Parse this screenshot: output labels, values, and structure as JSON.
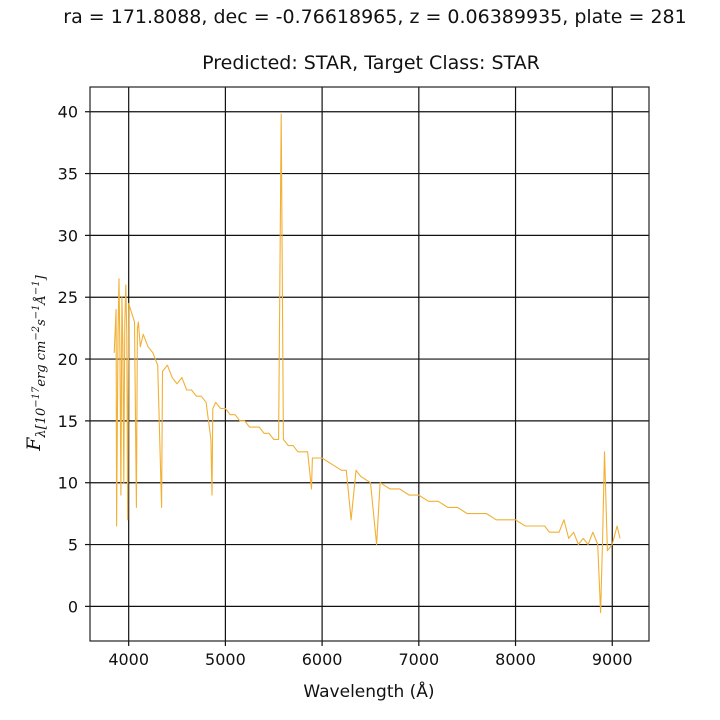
{
  "chart_data": {
    "type": "line",
    "title": "ra = 171.8088, dec = -0.76618965, z = 0.06389935, plate = 281",
    "subtitle": "Predicted: STAR, Target Class: STAR",
    "xlabel": "Wavelength (Å)",
    "ylabel": "F_λ[10^-17 erg cm^-2 s^-1 Å^-1]",
    "ylabel_main": "F",
    "ylabel_sub": "λ[10",
    "ylabel_exp1": "−17",
    "ylabel_mid": "erg cm",
    "ylabel_exp2": "−2",
    "ylabel_s": "s",
    "ylabel_exp3": "−1",
    "ylabel_ang": "Å",
    "ylabel_exp4": "−1",
    "ylabel_close": "]",
    "xlim": [
      3600,
      9380
    ],
    "ylim": [
      -2.8,
      42
    ],
    "xticks": [
      4000,
      5000,
      6000,
      7000,
      8000,
      9000
    ],
    "yticks": [
      0,
      5,
      10,
      15,
      20,
      25,
      30,
      35,
      40
    ],
    "grid": true,
    "line_color": "#f2b035",
    "series": [
      {
        "x": [
          3850,
          3870,
          3875,
          3890,
          3900,
          3910,
          3920,
          3930,
          3940,
          3950,
          3960,
          3970,
          3980,
          3990,
          4000,
          4020,
          4040,
          4060,
          4080,
          4090,
          4100,
          4110,
          4120,
          4150,
          4200,
          4250,
          4300,
          4340,
          4350,
          4400,
          4450,
          4500,
          4550,
          4600,
          4650,
          4700,
          4750,
          4800,
          4850,
          4861,
          4870,
          4900,
          4950,
          5000,
          5050,
          5100,
          5150,
          5200,
          5250,
          5300,
          5350,
          5400,
          5450,
          5500,
          5550,
          5577,
          5600,
          5650,
          5700,
          5750,
          5800,
          5850,
          5890,
          5900,
          5950,
          6000,
          6100,
          6200,
          6250,
          6300,
          6350,
          6400,
          6500,
          6563,
          6600,
          6700,
          6800,
          6900,
          7000,
          7100,
          7200,
          7300,
          7400,
          7500,
          7600,
          7700,
          7800,
          7900,
          8000,
          8100,
          8200,
          8300,
          8350,
          8400,
          8450,
          8500,
          8550,
          8600,
          8650,
          8700,
          8750,
          8800,
          8850,
          8880,
          8900,
          8920,
          8950,
          9000,
          9050,
          9080
        ],
        "y": [
          20.5,
          24,
          6.5,
          22,
          26.5,
          20,
          9,
          25,
          21,
          10,
          23,
          26,
          22,
          7,
          24.5,
          24,
          23.5,
          23,
          8,
          22.5,
          23,
          22,
          21,
          22,
          21,
          20.5,
          19.5,
          8,
          19,
          19.5,
          18.5,
          18,
          18.5,
          17.5,
          17.5,
          17,
          17,
          16.5,
          13.5,
          9,
          16,
          16.5,
          16,
          16,
          15.5,
          15.5,
          15,
          15,
          14.5,
          14.5,
          14.5,
          14,
          14,
          13.5,
          13.5,
          39.8,
          13.5,
          13,
          13,
          12.5,
          12.5,
          12.5,
          9.5,
          12,
          12,
          12,
          11.5,
          11,
          11,
          7,
          11,
          10.5,
          10,
          5,
          10,
          9.5,
          9.5,
          9,
          9,
          8.5,
          8.5,
          8,
          8,
          7.5,
          7.5,
          7.5,
          7,
          7,
          7,
          6.5,
          6.5,
          6.5,
          6,
          6,
          6,
          7,
          5.5,
          6,
          5,
          5.5,
          5,
          6,
          5,
          -0.5,
          5.5,
          12.5,
          4.5,
          5,
          6.5,
          5.5
        ]
      }
    ]
  }
}
